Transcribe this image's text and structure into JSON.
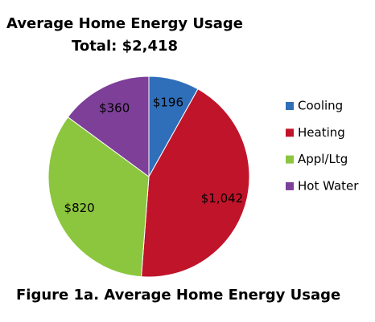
{
  "chart_data": {
    "type": "pie",
    "title": "Average Home Energy Usage",
    "subtitle": "Total: $2,418",
    "caption": "Figure 1a. Average Home Energy Usage",
    "categories": [
      "Cooling",
      "Heating",
      "Appl/Ltg",
      "Hot Water"
    ],
    "values": [
      196,
      1042,
      820,
      360
    ],
    "value_labels": [
      "$196",
      "$1,042",
      "$820",
      "$360"
    ],
    "colors": [
      "#2f6fba",
      "#c0142a",
      "#8cc63f",
      "#7d3f98"
    ],
    "legend": "right"
  }
}
